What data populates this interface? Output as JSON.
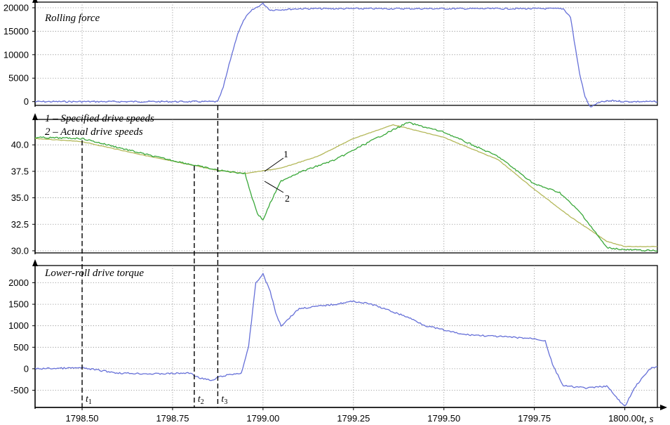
{
  "colors": {
    "force": "#6670d8",
    "specified": "#b4b85a",
    "actual": "#3aa83a",
    "torque": "#6670d8"
  },
  "chart_data": [
    {
      "type": "line",
      "title": "Rolling force",
      "xlim": [
        1798.37,
        1800.09
      ],
      "ylim": [
        -800,
        21200
      ],
      "yticks": [
        "0",
        "5000",
        "10000",
        "15000",
        "20000"
      ],
      "ytick_values": [
        0,
        5000,
        10000,
        15000,
        20000
      ],
      "grid": true,
      "series": [
        {
          "x": [
            1798.37,
            1798.6,
            1798.8,
            1798.875,
            1798.89,
            1798.91,
            1798.93,
            1798.95,
            1798.97,
            1799.0,
            1799.02,
            1799.05,
            1799.1,
            1799.3,
            1799.5,
            1799.7,
            1799.83,
            1799.85,
            1799.86,
            1799.875,
            1799.89,
            1799.905,
            1799.92,
            1799.94,
            1799.97,
            1800.0,
            1800.04,
            1800.09
          ],
          "y": [
            0,
            0,
            0,
            0,
            3000,
            9000,
            14500,
            17800,
            19500,
            20900,
            19500,
            19600,
            19800,
            19800,
            19800,
            19800,
            19800,
            18000,
            13000,
            6000,
            1000,
            -1200,
            -500,
            0,
            200,
            0,
            0,
            0
          ]
        }
      ]
    },
    {
      "type": "line",
      "title": "",
      "xlim": [
        1798.37,
        1800.09
      ],
      "ylim": [
        29.8,
        42.4
      ],
      "yticks": [
        "30.0",
        "32.5",
        "35.0",
        "37.5",
        "40.0"
      ],
      "ytick_values": [
        30.0,
        32.5,
        35.0,
        37.5,
        40.0
      ],
      "grid": true,
      "legend": [
        "1 – Specified drive speeds",
        "2 – Actual drive speeds"
      ],
      "annotations": [
        "1",
        "2"
      ],
      "series": [
        {
          "name": "1 – Specified drive speeds",
          "x": [
            1798.37,
            1798.5,
            1798.7,
            1798.875,
            1798.95,
            1799.05,
            1799.15,
            1799.25,
            1799.36,
            1799.5,
            1799.65,
            1799.75,
            1799.85,
            1799.95,
            1800.0,
            1800.09
          ],
          "y": [
            40.6,
            40.3,
            38.8,
            37.6,
            37.3,
            37.8,
            38.9,
            40.6,
            41.9,
            40.7,
            38.6,
            35.8,
            33.2,
            30.9,
            30.4,
            30.4
          ]
        },
        {
          "name": "2 – Actual drive speeds",
          "x": [
            1798.37,
            1798.5,
            1798.7,
            1798.875,
            1798.95,
            1798.97,
            1798.985,
            1799.0,
            1799.02,
            1799.05,
            1799.1,
            1799.2,
            1799.3,
            1799.4,
            1799.5,
            1799.65,
            1799.75,
            1799.82,
            1799.88,
            1799.95,
            1800.0,
            1800.09
          ],
          "y": [
            40.7,
            40.6,
            38.9,
            37.6,
            37.3,
            35.0,
            33.5,
            32.9,
            34.5,
            36.6,
            37.4,
            38.6,
            40.4,
            42.1,
            41.2,
            38.9,
            36.3,
            35.5,
            33.5,
            30.3,
            30.1,
            30.0
          ]
        }
      ]
    },
    {
      "type": "line",
      "title": "Lower-roll drive torque",
      "xlim": [
        1798.37,
        1800.09
      ],
      "ylim": [
        -900,
        2400
      ],
      "yticks": [
        "-500",
        "0",
        "500",
        "1000",
        "1500",
        "2000"
      ],
      "ytick_values": [
        -500,
        0,
        500,
        1000,
        1500,
        2000
      ],
      "xticks": [
        "1798.50",
        "1798.75",
        "1799.00",
        "1799.25",
        "1799.50",
        "1799.75",
        "1800.00"
      ],
      "xtick_values": [
        1798.5,
        1798.75,
        1799.0,
        1799.25,
        1799.5,
        1799.75,
        1800.0
      ],
      "xlabel": "t, s",
      "grid": true,
      "markers": [
        {
          "label": "t1",
          "x": 1798.5
        },
        {
          "label": "t2",
          "x": 1798.81
        },
        {
          "label": "t3",
          "x": 1798.875
        }
      ],
      "series": [
        {
          "x": [
            1798.37,
            1798.5,
            1798.6,
            1798.7,
            1798.8,
            1798.82,
            1798.86,
            1798.875,
            1798.9,
            1798.94,
            1798.96,
            1798.98,
            1799.0,
            1799.02,
            1799.035,
            1799.05,
            1799.1,
            1799.2,
            1799.25,
            1799.3,
            1799.4,
            1799.45,
            1799.55,
            1799.65,
            1799.75,
            1799.78,
            1799.8,
            1799.83,
            1799.9,
            1799.95,
            1799.98,
            1800.0,
            1800.03,
            1800.07,
            1800.09
          ],
          "y": [
            0,
            20,
            -100,
            -120,
            -100,
            -200,
            -280,
            -200,
            -150,
            -100,
            500,
            2000,
            2200,
            1800,
            1300,
            1000,
            1400,
            1500,
            1570,
            1500,
            1200,
            1000,
            800,
            750,
            700,
            650,
            100,
            -400,
            -450,
            -400,
            -700,
            -880,
            -400,
            0,
            50
          ]
        }
      ]
    }
  ]
}
